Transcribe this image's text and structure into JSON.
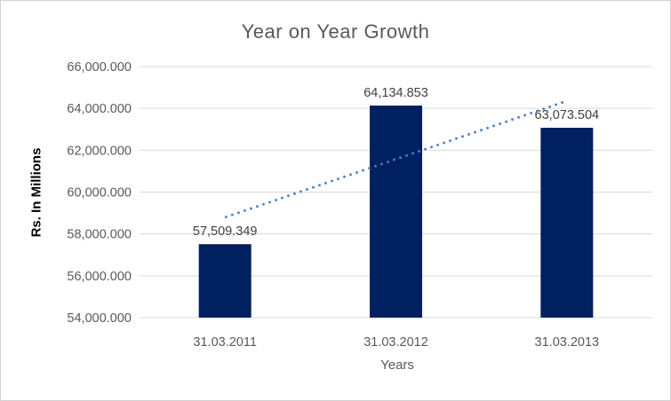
{
  "chart_data": {
    "type": "bar",
    "title": "Year on Year Growth",
    "xlabel": "Years",
    "ylabel": "Rs. In Millions",
    "categories": [
      "31.03.2011",
      "31.03.2012",
      "31.03.2013"
    ],
    "values": [
      57509.349,
      64134.853,
      63073.504
    ],
    "data_labels": [
      "57,509.349",
      "64,134.853",
      "63,073.504"
    ],
    "y_tick_values": [
      54000,
      56000,
      58000,
      60000,
      62000,
      64000,
      66000
    ],
    "y_tick_labels": [
      "54,000.000",
      "56,000.000",
      "58,000.000",
      "60,000.000",
      "62,000.000",
      "64,000.000",
      "66,000.000"
    ],
    "ylim": [
      54000,
      66000
    ],
    "grid": true,
    "legend": "none",
    "colors": {
      "bar": "#002060",
      "trendline": "#4a7ec8",
      "gridline": "#d9d9d9",
      "tick_text": "#595959",
      "data_label_text": "#404040",
      "title_text": "#595959"
    },
    "trendline": {
      "style": "dotted",
      "start_value": 58790,
      "end_value": 64355
    }
  }
}
